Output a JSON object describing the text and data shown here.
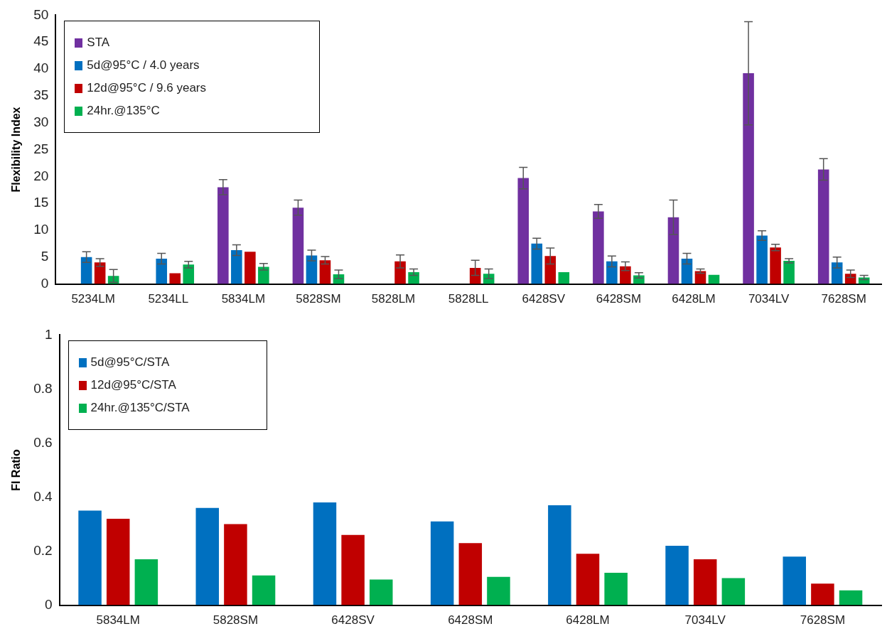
{
  "chart_data": [
    {
      "type": "bar",
      "ylabel": "Flexibility Index",
      "categories": [
        "5234LM",
        "5234LL",
        "5834LM",
        "5828SM",
        "5828LM",
        "5828LL",
        "6428SV",
        "6428SM",
        "6428LM",
        "7034LV",
        "7628SM"
      ],
      "series": [
        {
          "name": "STA",
          "color": "#7030a0",
          "values": [
            null,
            null,
            18,
            14.2,
            null,
            null,
            19.7,
            13.5,
            12.4,
            39.2,
            21.3
          ],
          "errors": [
            null,
            null,
            1.4,
            1.4,
            null,
            null,
            2,
            1.3,
            3.2,
            9.6,
            2
          ]
        },
        {
          "name": "5d@95°C / 4.0 years",
          "color": "#0070c0",
          "values": [
            5,
            4.7,
            6.3,
            5.3,
            null,
            null,
            7.5,
            4.2,
            4.7,
            9,
            4
          ],
          "errors": [
            1,
            1,
            1,
            1,
            null,
            null,
            1,
            1,
            1,
            0.9,
            1
          ]
        },
        {
          "name": "12d@95°C / 9.6 years",
          "color": "#c00000",
          "values": [
            4,
            2,
            6,
            4.4,
            4.2,
            3,
            5.2,
            3.3,
            2.4,
            6.8,
            1.9
          ],
          "errors": [
            0.7,
            null,
            null,
            0.7,
            1.2,
            1.4,
            1.5,
            0.8,
            0.4,
            0.6,
            0.7
          ]
        },
        {
          "name": "24hr.@135°C",
          "color": "#00b050",
          "values": [
            1.5,
            3.6,
            3.2,
            1.8,
            2.2,
            1.9,
            2.2,
            1.6,
            1.7,
            4.3,
            1.2
          ],
          "errors": [
            1.2,
            0.6,
            0.6,
            0.8,
            0.6,
            0.9,
            null,
            0.5,
            null,
            0.4,
            0.4
          ]
        }
      ],
      "ylim": [
        0,
        50
      ],
      "yticks": [
        0,
        5,
        10,
        15,
        20,
        25,
        30,
        35,
        40,
        45,
        50
      ],
      "grid": false,
      "legend": "top left"
    },
    {
      "type": "bar",
      "ylabel": "FI Ratio",
      "categories": [
        "5834LM",
        "5828SM",
        "6428SV",
        "6428SM",
        "6428LM",
        "7034LV",
        "7628SM"
      ],
      "series": [
        {
          "name": "5d@95°C/STA",
          "color": "#0070c0",
          "values": [
            0.35,
            0.36,
            0.38,
            0.31,
            0.37,
            0.22,
            0.18
          ]
        },
        {
          "name": "12d@95°C/STA",
          "color": "#c00000",
          "values": [
            0.32,
            0.3,
            0.26,
            0.23,
            0.19,
            0.17,
            0.08
          ]
        },
        {
          "name": "24hr.@135°C/STA",
          "color": "#00b050",
          "values": [
            0.17,
            0.11,
            0.095,
            0.105,
            0.12,
            0.1,
            0.055
          ]
        }
      ],
      "ylim": [
        0,
        1
      ],
      "yticks": [
        0,
        0.2,
        0.4,
        0.6,
        0.8,
        1
      ],
      "grid": false,
      "legend": "top left"
    }
  ]
}
